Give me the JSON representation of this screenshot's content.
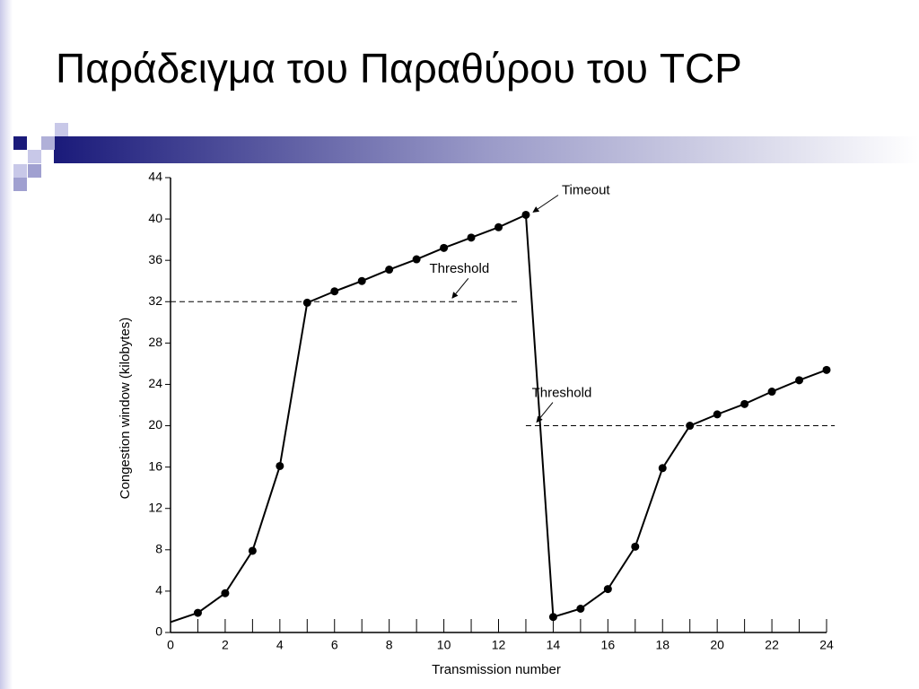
{
  "title": "Παράδειγμα του Παραθύρου του TCP",
  "chart_data": {
    "type": "line",
    "x_label": "Transmission number",
    "y_label": "Congestion window (kilobytes)",
    "x": [
      0,
      1,
      2,
      3,
      4,
      5,
      6,
      7,
      8,
      9,
      10,
      11,
      12,
      13,
      14,
      15,
      16,
      17,
      18,
      19,
      20,
      21,
      22,
      23,
      24
    ],
    "series": [
      {
        "color": "#000000",
        "values": [
          1.0,
          1.9,
          3.8,
          7.9,
          16.1,
          31.9,
          33,
          34,
          35.1,
          36.1,
          37.2,
          38.2,
          39.2,
          40.4,
          1.5,
          2.3,
          4.2,
          8.3,
          15.9,
          20,
          21.1,
          22.1,
          23.3,
          24.4,
          25.4
        ]
      }
    ],
    "xlim": [
      0,
      24
    ],
    "ylim": [
      0,
      44
    ],
    "xticks": [
      0,
      2,
      4,
      6,
      8,
      10,
      12,
      14,
      16,
      18,
      20,
      22,
      24
    ],
    "yticks": [
      0,
      4,
      8,
      12,
      16,
      20,
      24,
      28,
      32,
      36,
      40,
      44
    ],
    "reference_lines": [
      {
        "label": "Threshold",
        "value": 32,
        "xrange": [
          0,
          12.7
        ]
      },
      {
        "label": "Threshold",
        "value": 20,
        "xrange": [
          13,
          24.3
        ]
      }
    ],
    "annotations": [
      {
        "text": "Timeout",
        "x": 13,
        "y": 40.4
      }
    ]
  }
}
